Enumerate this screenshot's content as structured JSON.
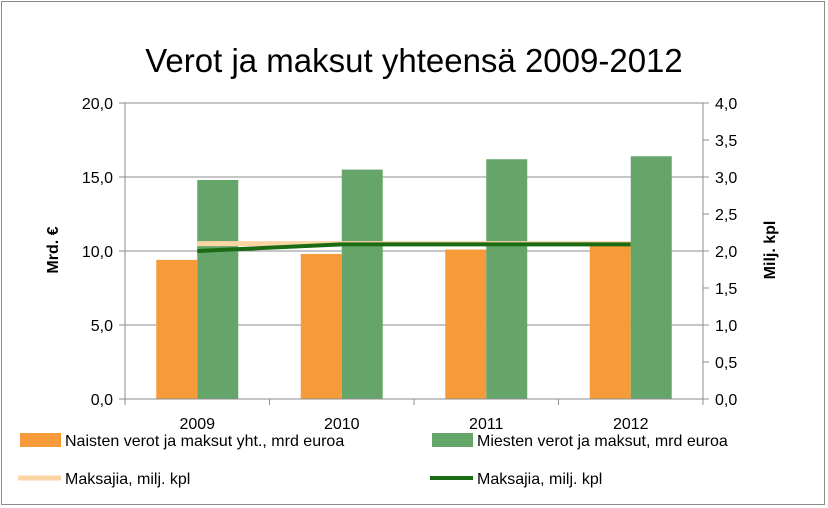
{
  "chart_data": {
    "type": "bar",
    "title": "Verot ja maksut yhteensä  2009-2012",
    "categories": [
      "2009",
      "2010",
      "2011",
      "2012"
    ],
    "ylabel_left": "Mrd. €",
    "ylabel_right": "Milj. kpl",
    "ylim_left": [
      0,
      20
    ],
    "ylim_right": [
      0,
      4
    ],
    "yticks_left": [
      "0,0",
      "5,0",
      "10,0",
      "15,0",
      "20,0"
    ],
    "yticks_right": [
      "0,0",
      "0,5",
      "1,0",
      "1,5",
      "2,0",
      "2,5",
      "3,0",
      "3,5",
      "4,0"
    ],
    "grid": true,
    "legend_position": "bottom",
    "series": [
      {
        "name": "Naisten verot ja maksut yht., mrd  euroa",
        "type": "bar",
        "axis": "left",
        "color": "#f79a3a",
        "values": [
          9.4,
          9.8,
          10.1,
          10.4
        ]
      },
      {
        "name": "Miesten verot ja maksut, mrd  euroa",
        "type": "bar",
        "axis": "left",
        "color": "#66a56a",
        "values": [
          14.8,
          15.5,
          16.2,
          16.4
        ]
      },
      {
        "name": "Maksajia, milj. kpl",
        "type": "line",
        "axis": "right",
        "color": "#fcd5a4",
        "values": [
          2.1,
          2.1,
          2.1,
          2.1
        ]
      },
      {
        "name": "Maksajia, milj. kpl",
        "type": "line",
        "axis": "right",
        "color": "#1a6b12",
        "values": [
          2.0,
          2.09,
          2.09,
          2.09
        ]
      }
    ]
  }
}
